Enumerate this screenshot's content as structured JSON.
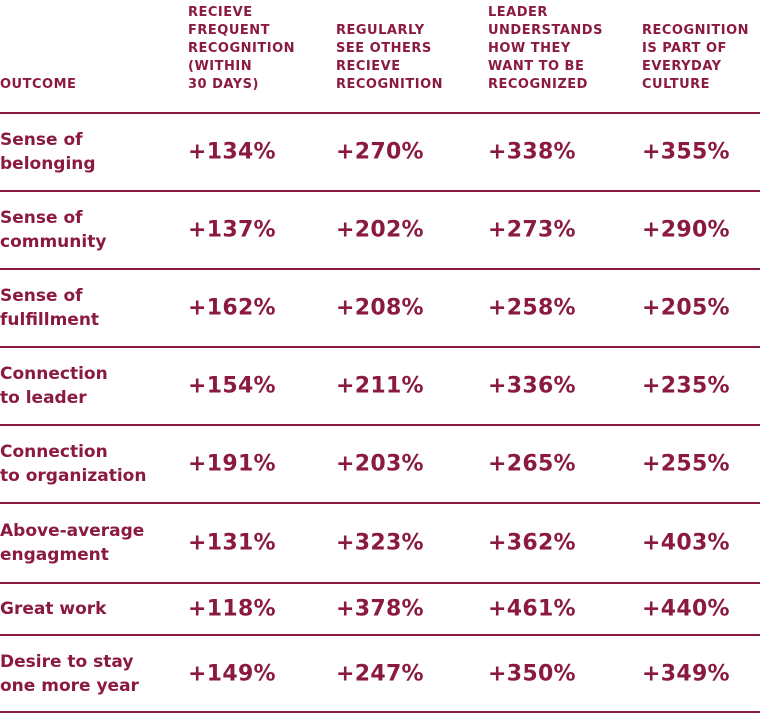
{
  "colors": {
    "accent": "#8b1a3f",
    "background": "#ffffff"
  },
  "chart_data": {
    "type": "table",
    "columns": [
      "OUTCOME",
      "RECIEVE\nFREQUENT\nRECOGNITION\n(WITHIN\n30 DAYS)",
      "REGULARLY\nSEE OTHERS\nRECIEVE\nRECOGNITION",
      "LEADER\nUNDERSTANDS\nHOW THEY\nWANT TO BE\nRECOGNIZED",
      "RECOGNITION\nIS PART OF\nEVERYDAY\nCULTURE"
    ],
    "rows": [
      {
        "label": "Sense of\nbelonging",
        "values": [
          "+134%",
          "+270%",
          "+338%",
          "+355%"
        ]
      },
      {
        "label": "Sense of\ncommunity",
        "values": [
          "+137%",
          "+202%",
          "+273%",
          "+290%"
        ]
      },
      {
        "label": "Sense of\nfulfillment",
        "values": [
          "+162%",
          "+208%",
          "+258%",
          "+205%"
        ]
      },
      {
        "label": "Connection\nto leader",
        "values": [
          "+154%",
          "+211%",
          "+336%",
          "+235%"
        ]
      },
      {
        "label": "Connection\nto organization",
        "values": [
          "+191%",
          "+203%",
          "+265%",
          "+255%"
        ]
      },
      {
        "label": "Above-average\nengagment",
        "values": [
          "+131%",
          "+323%",
          "+362%",
          "+403%"
        ]
      },
      {
        "label": "Great work",
        "values": [
          "+118%",
          "+378%",
          "+461%",
          "+440%"
        ]
      },
      {
        "label": "Desire to stay\none more year",
        "values": [
          "+149%",
          "+247%",
          "+350%",
          "+349%"
        ]
      }
    ]
  }
}
